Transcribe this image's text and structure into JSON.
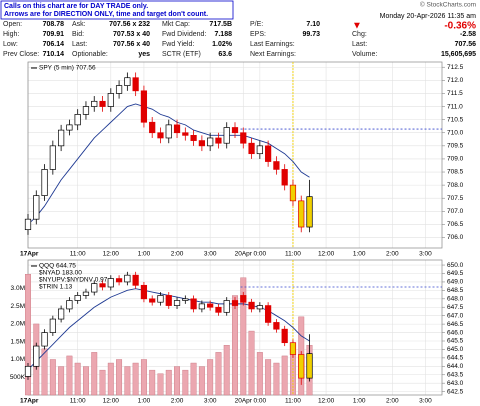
{
  "note": {
    "lines": [
      "Calls on this chart are for DAY TRADE only.",
      "Arrows are for DIRECTION ONLY, time and target don't count."
    ]
  },
  "copyright": "© StockCharts.com",
  "quote": {
    "columns": [
      {
        "rows": [
          [
            "Open:",
            "708.78"
          ],
          [
            "High:",
            "709.91"
          ],
          [
            "Low:",
            "706.14"
          ],
          [
            "Prev Close:",
            "710.14"
          ]
        ]
      },
      {
        "rows": [
          [
            "Ask:",
            "707.56 x 232"
          ],
          [
            "Bid:",
            "707.53 x 40"
          ],
          [
            "Last:",
            "707.56 x 40"
          ],
          [
            "Optionable:",
            "yes"
          ]
        ]
      },
      {
        "rows": [
          [
            "Mkt Cap:",
            "717.5B"
          ],
          [
            "Fwd Dividend:",
            "7.188"
          ],
          [
            "Fwd Yield:",
            "1.02%"
          ],
          [
            "SCTR (ETF)",
            "63.6"
          ]
        ]
      },
      {
        "rows": [
          [
            "P/E:",
            "7.10"
          ],
          [
            "EPS:",
            "99.73"
          ],
          [
            "Last Earnings:"
          ],
          [
            "Next Earnings:"
          ]
        ]
      }
    ],
    "datetime": "Monday 20-Apr-2026 11:35 am",
    "change_arrow": "▼",
    "change_pct": "-0.36%",
    "right_rows": [
      [
        "Chg:",
        "-2.58"
      ],
      [
        "Last:",
        "707.56"
      ],
      [
        "Volume:",
        "15,605,695"
      ]
    ]
  },
  "chart_data": [
    {
      "type": "candlestick",
      "legend": [
        "SPY (5 min) 707.56"
      ],
      "x": [
        0,
        3,
        6,
        9,
        12,
        15,
        18,
        21,
        24,
        27,
        30,
        33,
        36,
        39,
        42,
        45,
        48,
        51,
        54,
        57,
        60,
        63,
        66,
        69,
        72,
        75,
        78,
        81,
        84,
        87,
        90,
        93,
        96,
        99,
        102
      ],
      "open": [
        706.3,
        706.7,
        707.6,
        708.6,
        709.5,
        710.1,
        710.3,
        710.7,
        711.0,
        711.2,
        711.0,
        711.5,
        711.8,
        712.1,
        711.6,
        710.4,
        710.0,
        709.8,
        710.3,
        710.0,
        709.9,
        709.7,
        709.5,
        709.8,
        709.6,
        710.2,
        710.0,
        709.6,
        709.2,
        709.5,
        708.9,
        708.6,
        708.0,
        707.4,
        706.4
      ],
      "high": [
        706.9,
        707.8,
        708.8,
        709.7,
        710.3,
        710.5,
        710.9,
        711.2,
        711.4,
        711.4,
        711.7,
        712.0,
        712.3,
        712.3,
        711.8,
        710.6,
        710.2,
        710.5,
        710.5,
        710.2,
        710.1,
        709.9,
        710.0,
        710.0,
        710.4,
        710.4,
        710.2,
        709.8,
        709.7,
        709.7,
        709.1,
        708.8,
        708.2,
        707.6,
        708.2
      ],
      "low": [
        706.1,
        706.5,
        707.4,
        708.4,
        709.3,
        709.9,
        710.1,
        710.5,
        710.8,
        710.8,
        710.8,
        711.3,
        711.6,
        711.4,
        710.2,
        709.8,
        709.6,
        709.6,
        709.8,
        709.7,
        709.5,
        709.3,
        709.3,
        709.4,
        709.4,
        709.8,
        709.4,
        709.0,
        709.0,
        708.7,
        708.4,
        707.8,
        707.2,
        706.2,
        706.2
      ],
      "close": [
        706.7,
        707.6,
        708.6,
        709.5,
        710.1,
        710.3,
        710.7,
        711.0,
        711.2,
        711.0,
        711.5,
        711.8,
        712.1,
        711.6,
        710.4,
        710.0,
        709.8,
        710.3,
        710.0,
        709.9,
        709.7,
        709.5,
        709.8,
        709.6,
        710.2,
        710.0,
        709.6,
        709.2,
        709.5,
        708.9,
        708.6,
        708.0,
        707.4,
        706.4,
        707.56
      ],
      "ma": {
        "color": "#1f3a93",
        "values": [
          706.5,
          706.8,
          707.2,
          707.7,
          708.2,
          708.6,
          709.0,
          709.4,
          709.8,
          710.1,
          710.4,
          710.7,
          711.0,
          711.1,
          711.0,
          710.9,
          710.7,
          710.6,
          710.4,
          710.3,
          710.1,
          710.0,
          709.9,
          709.9,
          709.9,
          709.9,
          709.9,
          709.8,
          709.7,
          709.6,
          709.4,
          709.2,
          708.9,
          708.5,
          708.3
        ]
      },
      "up_color": "#000000",
      "down_color": "#e00000",
      "reference_line": 710.14,
      "reference_color": "#3344cc",
      "highlight_x": 96,
      "highlight_color": "#f0d000",
      "xlim": [
        0,
        150
      ],
      "xticks": [
        {
          "value": 0,
          "label": "17Apr"
        },
        {
          "value": 18,
          "label": "11:00"
        },
        {
          "value": 30,
          "label": "12:00"
        },
        {
          "value": 42,
          "label": "1:00"
        },
        {
          "value": 54,
          "label": "2:00"
        },
        {
          "value": 66,
          "label": "3:00"
        },
        {
          "value": 78,
          "label": "20Apr"
        },
        {
          "value": 84,
          "label": "0:00"
        },
        {
          "value": 96,
          "label": "11:00"
        },
        {
          "value": 108,
          "label": "12:00"
        },
        {
          "value": 120,
          "label": "1:00"
        },
        {
          "value": 132,
          "label": "2:00"
        },
        {
          "value": 144,
          "label": "3:00"
        }
      ],
      "ylim": [
        705.6,
        712.7
      ],
      "yticks": [
        {
          "value": 706,
          "label": "706.0"
        },
        706.5,
        {
          "value": 707,
          "label": "707.0"
        },
        707.5,
        {
          "value": 708,
          "label": "708.0"
        },
        708.5,
        {
          "value": 709,
          "label": "709.0"
        },
        709.5,
        {
          "value": 710,
          "label": "710.0"
        },
        710.5,
        {
          "value": 711,
          "label": "711.0"
        },
        711.5,
        {
          "value": 712,
          "label": "712.0"
        },
        712.5
      ],
      "grid": true
    },
    {
      "type": "candlestick",
      "legend": [
        "QQQ 644.75",
        "$NYAD 183.00",
        "$NYUPV:$NYDNV 0.97",
        "$TRIN 1.13"
      ],
      "x": [
        0,
        3,
        6,
        9,
        12,
        15,
        18,
        21,
        24,
        27,
        30,
        33,
        36,
        39,
        42,
        45,
        48,
        51,
        54,
        57,
        60,
        63,
        66,
        69,
        72,
        75,
        78,
        81,
        84,
        87,
        90,
        93,
        96,
        99,
        102
      ],
      "open": [
        643.4,
        644.0,
        645.2,
        646.0,
        646.8,
        647.4,
        647.9,
        648.2,
        648.4,
        648.9,
        648.7,
        649.2,
        649.0,
        649.4,
        648.8,
        648.0,
        647.8,
        648.2,
        647.6,
        647.9,
        648.0,
        647.4,
        647.7,
        647.5,
        647.2,
        647.9,
        648.2,
        647.8,
        647.4,
        647.6,
        646.6,
        646.2,
        645.4,
        644.7,
        643.3
      ],
      "high": [
        644.2,
        645.4,
        646.2,
        647.0,
        647.6,
        648.1,
        648.4,
        648.6,
        649.1,
        649.1,
        649.4,
        649.4,
        649.6,
        649.6,
        649.0,
        648.2,
        648.4,
        648.4,
        648.1,
        648.2,
        648.2,
        647.9,
        647.9,
        647.7,
        648.1,
        648.1,
        648.4,
        648.0,
        647.8,
        647.8,
        646.8,
        646.4,
        645.6,
        644.9,
        645.9
      ],
      "low": [
        643.2,
        643.8,
        645.0,
        645.8,
        646.6,
        647.2,
        647.7,
        648.0,
        648.2,
        648.5,
        648.5,
        648.8,
        648.8,
        648.6,
        647.8,
        647.6,
        647.6,
        647.4,
        647.4,
        647.7,
        647.2,
        647.2,
        647.3,
        647.0,
        647.0,
        647.4,
        647.6,
        647.2,
        647.2,
        646.4,
        646.0,
        645.2,
        644.5,
        642.9,
        643.1
      ],
      "close": [
        644.0,
        645.2,
        646.0,
        646.8,
        647.4,
        647.9,
        648.2,
        648.4,
        648.9,
        648.7,
        649.2,
        649.0,
        649.4,
        648.8,
        648.0,
        647.8,
        648.2,
        647.6,
        647.9,
        648.0,
        647.4,
        647.7,
        647.5,
        647.2,
        647.9,
        647.6,
        647.8,
        647.4,
        647.6,
        646.6,
        646.2,
        645.4,
        644.7,
        643.3,
        644.75
      ],
      "ma": {
        "color": "#1f3a93",
        "values": [
          643.8,
          644.3,
          644.8,
          645.3,
          645.8,
          646.3,
          646.7,
          647.1,
          647.5,
          647.8,
          648.1,
          648.3,
          648.5,
          648.6,
          648.5,
          648.4,
          648.3,
          648.2,
          648.1,
          648.0,
          647.9,
          647.8,
          647.8,
          647.7,
          647.7,
          647.7,
          647.7,
          647.6,
          647.5,
          647.3,
          647.0,
          646.7,
          646.3,
          645.8,
          645.5
        ]
      },
      "up_color": "#000000",
      "down_color": "#e00000",
      "reference_line": 648.7,
      "reference_color": "#3344cc",
      "highlight_x": 96,
      "highlight_color": "#f0d000",
      "volume": {
        "color": "#eba7b0",
        "values": [
          3400000,
          2000000,
          1300000,
          1000000,
          800000,
          1100000,
          900000,
          800000,
          1200000,
          700000,
          900000,
          1000000,
          800000,
          900000,
          1000000,
          700000,
          600000,
          700000,
          800000,
          700000,
          900000,
          800000,
          1000000,
          1200000,
          1400000,
          2800000,
          3300000,
          1800000,
          1200000,
          1000000,
          900000,
          1100000,
          1300000,
          2200000,
          1400000
        ],
        "ylim": [
          0,
          3800000
        ],
        "yticks": [
          {
            "value": 500000,
            "label": "500K"
          },
          {
            "value": 1000000,
            "label": "1.0M"
          },
          {
            "value": 1500000,
            "label": "1.5M"
          },
          {
            "value": 2000000,
            "label": "2.0M"
          },
          {
            "value": 2500000,
            "label": "2.5M"
          },
          {
            "value": 3000000,
            "label": "3.0M"
          }
        ]
      },
      "xlim": [
        0,
        150
      ],
      "xticks": [
        {
          "value": 0,
          "label": "17Apr"
        },
        {
          "value": 18,
          "label": "11:00"
        },
        {
          "value": 30,
          "label": "12:00"
        },
        {
          "value": 42,
          "label": "1:00"
        },
        {
          "value": 54,
          "label": "2:00"
        },
        {
          "value": 66,
          "label": "3:00"
        },
        {
          "value": 78,
          "label": "20Apr"
        },
        {
          "value": 84,
          "label": "0:00"
        },
        {
          "value": 96,
          "label": "11:00"
        },
        {
          "value": 108,
          "label": "12:00"
        },
        {
          "value": 120,
          "label": "1:00"
        },
        {
          "value": 132,
          "label": "2:00"
        },
        {
          "value": 144,
          "label": "3:00"
        }
      ],
      "ylim": [
        642.3,
        650.3
      ],
      "yticks": [
        642.5,
        {
          "value": 643,
          "label": "643.0"
        },
        643.5,
        {
          "value": 644,
          "label": "644.0"
        },
        644.5,
        {
          "value": 645,
          "label": "645.0"
        },
        645.5,
        {
          "value": 646,
          "label": "646.0"
        },
        646.5,
        {
          "value": 647,
          "label": "647.0"
        },
        647.5,
        {
          "value": 648,
          "label": "648.0"
        },
        648.5,
        {
          "value": 649,
          "label": "649.0"
        },
        649.5,
        {
          "value": 650,
          "label": "650.0"
        }
      ],
      "grid": true
    }
  ]
}
